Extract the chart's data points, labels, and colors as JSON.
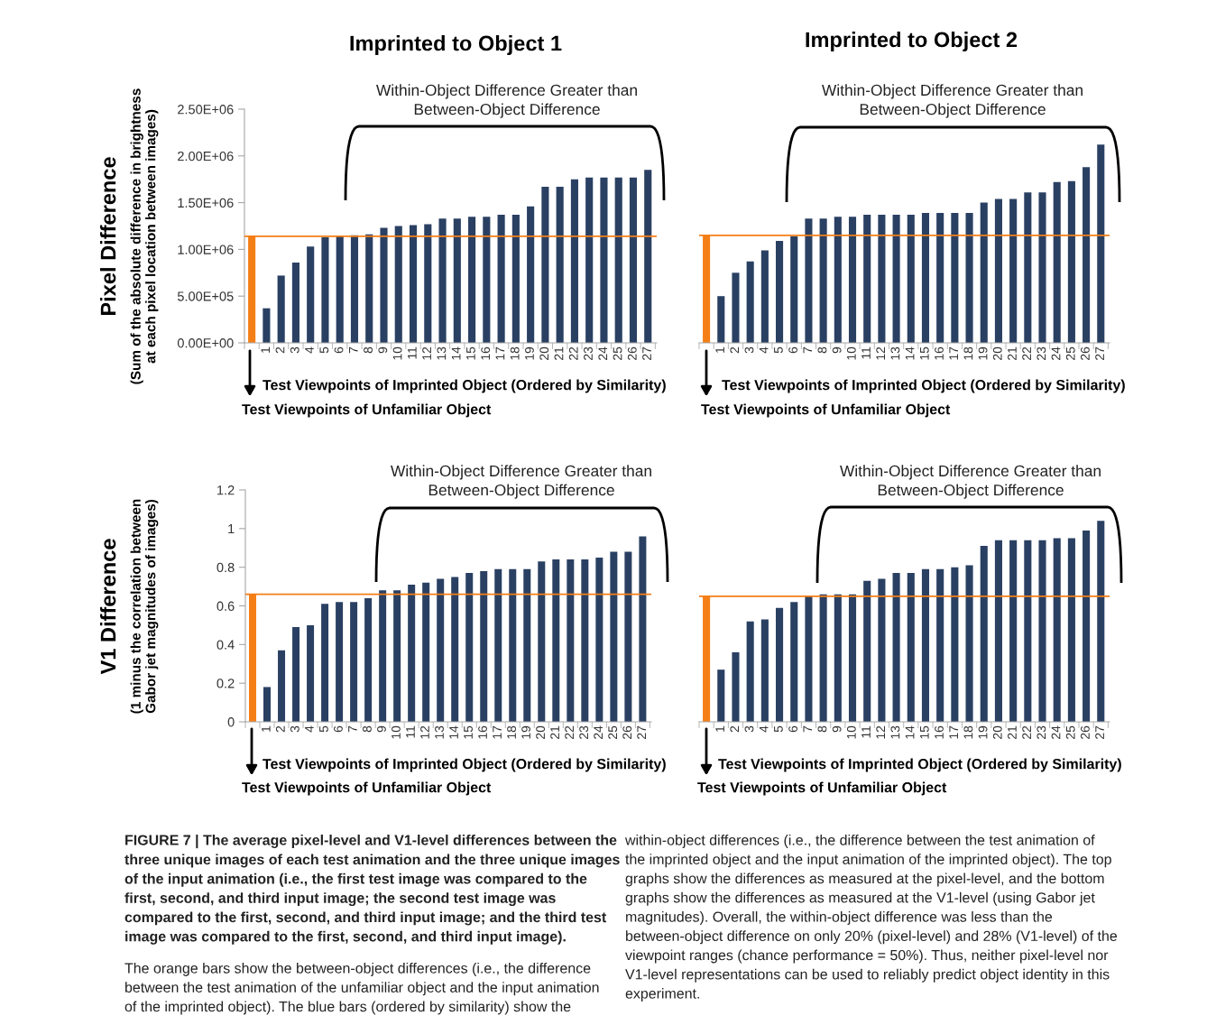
{
  "chart_data": [
    {
      "type": "bar",
      "title": "Imprinted to Object 1",
      "ylabel": "Pixel Difference\n(Sum of the absolute difference in brightness\nat each pixel location between images)",
      "xlabel": "Test Viewpoints of Imprinted Object (Ordered by Similarity)",
      "categories": [
        null,
        "1",
        "2",
        "3",
        "4",
        "5",
        "6",
        "7",
        "8",
        "9",
        "10",
        "11",
        "12",
        "13",
        "14",
        "15",
        "16",
        "17",
        "18",
        "19",
        "20",
        "21",
        "22",
        "23",
        "24",
        "25",
        "26",
        "27"
      ],
      "values": [
        1140000,
        370000,
        720000,
        860000,
        1030000,
        1130000,
        1140000,
        1150000,
        1160000,
        1230000,
        1250000,
        1260000,
        1270000,
        1330000,
        1330000,
        1350000,
        1350000,
        1370000,
        1370000,
        1460000,
        1670000,
        1670000,
        1750000,
        1770000,
        1770000,
        1770000,
        1770000,
        1850000
      ],
      "colors": [
        "#f57f17",
        "#2a4063",
        "#2a4063",
        "#2a4063",
        "#2a4063",
        "#2a4063",
        "#2a4063",
        "#2a4063",
        "#2a4063",
        "#2a4063",
        "#2a4063",
        "#2a4063",
        "#2a4063",
        "#2a4063",
        "#2a4063",
        "#2a4063",
        "#2a4063",
        "#2a4063",
        "#2a4063",
        "#2a4063",
        "#2a4063",
        "#2a4063",
        "#2a4063",
        "#2a4063",
        "#2a4063",
        "#2a4063",
        "#2a4063",
        "#2a4063"
      ],
      "ylim": [
        0,
        2500000
      ],
      "yticks": [
        {
          "value": 0,
          "label": "0.00E+00"
        },
        {
          "value": 500000,
          "label": "5.00E+05"
        },
        {
          "value": 1000000,
          "label": "1.00E+06"
        },
        {
          "value": 1500000,
          "label": "1.50E+06"
        },
        {
          "value": 2000000,
          "label": "2.00E+06"
        },
        {
          "value": 2500000,
          "label": "2.50E+06"
        }
      ],
      "ref_lines": [
        {
          "axis": "y",
          "value": 1140000,
          "color": "#f57f17"
        }
      ],
      "annotations": [
        "Within-Object Difference Greater than\nBetween-Object Difference",
        "Test Viewpoints of Unfamiliar Object",
        "FIGURE 7 | The average pixel-level and V1-level differences between the\nthree unique images of each test animation and the three unique images\nof the input animation (i.e., the first test image was compared to the\nfirst, second, and third input image; the second test image was\ncompared to the first, second, and third input image; and the third test\nimage was compared to the first, second, and third input image).",
        "The orange bars show the between-object differences (i.e., the difference\nbetween the test animation of the unfamiliar object and the input animation\nof the imprinted object). The blue bars (ordered by similarity) show the",
        "within-object differences (i.e., the difference between the test animation of\nthe imprinted object and the input animation of the imprinted object). The top\ngraphs show the differences as measured at the pixel-level, and the bottom\ngraphs show the differences as measured at the V1-level (using Gabor jet\nmagnitudes). Overall, the within-object difference was less than the\nbetween-object difference on only 20% (pixel-level) and 28% (V1-level) of the\nviewpoint ranges (chance performance = 50%). Thus, neither pixel-level nor\nV1-level representations can be used to reliably predict object identity in this\nexperiment."
      ]
    },
    {
      "type": "bar",
      "title": "Imprinted to Object 2",
      "xlabel": "Test Viewpoints of Imprinted Object (Ordered by Similarity)",
      "categories": [
        null,
        "1",
        "2",
        "3",
        "4",
        "5",
        "6",
        "7",
        "8",
        "9",
        "10",
        "11",
        "12",
        "13",
        "14",
        "15",
        "16",
        "17",
        "18",
        "19",
        "20",
        "21",
        "22",
        "23",
        "24",
        "25",
        "26",
        "27"
      ],
      "values": [
        1150000,
        500000,
        750000,
        870000,
        990000,
        1090000,
        1140000,
        1330000,
        1330000,
        1350000,
        1350000,
        1370000,
        1370000,
        1370000,
        1370000,
        1390000,
        1390000,
        1390000,
        1390000,
        1500000,
        1540000,
        1540000,
        1610000,
        1610000,
        1720000,
        1730000,
        1880000,
        2120000
      ],
      "colors": [
        "#f57f17",
        "#2a4063",
        "#2a4063",
        "#2a4063",
        "#2a4063",
        "#2a4063",
        "#2a4063",
        "#2a4063",
        "#2a4063",
        "#2a4063",
        "#2a4063",
        "#2a4063",
        "#2a4063",
        "#2a4063",
        "#2a4063",
        "#2a4063",
        "#2a4063",
        "#2a4063",
        "#2a4063",
        "#2a4063",
        "#2a4063",
        "#2a4063",
        "#2a4063",
        "#2a4063",
        "#2a4063",
        "#2a4063",
        "#2a4063",
        "#2a4063"
      ],
      "ylim": [
        0,
        2500000
      ],
      "tick_labels": "x",
      "ref_lines": [
        {
          "axis": "y",
          "value": 1150000,
          "color": "#f57f17"
        }
      ],
      "annotations": [
        "Within-Object Difference Greater than\nBetween-Object Difference",
        "Test Viewpoints of Unfamiliar Object"
      ]
    },
    {
      "type": "bar",
      "ylabel": "V1 Difference\n(1 minus the correlation between\nGabor jet magnitudes of images)",
      "xlabel": "Test Viewpoints of Imprinted Object (Ordered by Similarity)",
      "categories": [
        null,
        "1",
        "2",
        "3",
        "4",
        "5",
        "6",
        "7",
        "8",
        "9",
        "10",
        "11",
        "12",
        "13",
        "14",
        "15",
        "16",
        "17",
        "18",
        "19",
        "20",
        "21",
        "22",
        "23",
        "24",
        "25",
        "26",
        "27"
      ],
      "values": [
        0.66,
        0.18,
        0.37,
        0.49,
        0.5,
        0.61,
        0.62,
        0.62,
        0.64,
        0.68,
        0.68,
        0.71,
        0.72,
        0.74,
        0.75,
        0.77,
        0.78,
        0.79,
        0.79,
        0.79,
        0.83,
        0.84,
        0.84,
        0.84,
        0.85,
        0.88,
        0.88,
        0.96
      ],
      "colors": [
        "#f57f17",
        "#2a4063",
        "#2a4063",
        "#2a4063",
        "#2a4063",
        "#2a4063",
        "#2a4063",
        "#2a4063",
        "#2a4063",
        "#2a4063",
        "#2a4063",
        "#2a4063",
        "#2a4063",
        "#2a4063",
        "#2a4063",
        "#2a4063",
        "#2a4063",
        "#2a4063",
        "#2a4063",
        "#2a4063",
        "#2a4063",
        "#2a4063",
        "#2a4063",
        "#2a4063",
        "#2a4063",
        "#2a4063",
        "#2a4063",
        "#2a4063"
      ],
      "ylim": [
        0,
        1.2
      ],
      "yticks": [
        0,
        0.2,
        0.4,
        0.6,
        0.8,
        1,
        1.2
      ],
      "ref_lines": [
        {
          "axis": "y",
          "value": 0.66,
          "color": "#f57f17"
        }
      ],
      "annotations": [
        "Within-Object Difference Greater than\nBetween-Object Difference",
        "Test Viewpoints of Unfamiliar Object"
      ]
    },
    {
      "type": "bar",
      "xlabel": "Test Viewpoints of Imprinted Object (Ordered by Similarity)",
      "categories": [
        null,
        "1",
        "2",
        "3",
        "4",
        "5",
        "6",
        "7",
        "8",
        "9",
        "10",
        "11",
        "12",
        "13",
        "14",
        "15",
        "16",
        "17",
        "18",
        "19",
        "20",
        "21",
        "22",
        "23",
        "24",
        "25",
        "26",
        "27"
      ],
      "values": [
        0.65,
        0.27,
        0.36,
        0.52,
        0.53,
        0.59,
        0.62,
        0.65,
        0.66,
        0.66,
        0.66,
        0.73,
        0.74,
        0.77,
        0.77,
        0.79,
        0.79,
        0.8,
        0.81,
        0.91,
        0.94,
        0.94,
        0.94,
        0.94,
        0.95,
        0.95,
        0.99,
        1.04
      ],
      "colors": [
        "#f57f17",
        "#2a4063",
        "#2a4063",
        "#2a4063",
        "#2a4063",
        "#2a4063",
        "#2a4063",
        "#2a4063",
        "#2a4063",
        "#2a4063",
        "#2a4063",
        "#2a4063",
        "#2a4063",
        "#2a4063",
        "#2a4063",
        "#2a4063",
        "#2a4063",
        "#2a4063",
        "#2a4063",
        "#2a4063",
        "#2a4063",
        "#2a4063",
        "#2a4063",
        "#2a4063",
        "#2a4063",
        "#2a4063",
        "#2a4063",
        "#2a4063"
      ],
      "ylim": [
        0,
        1.2
      ],
      "tick_labels": "x",
      "ref_lines": [
        {
          "axis": "y",
          "value": 0.65,
          "color": "#f57f17"
        }
      ],
      "annotations": [
        "Within-Object Difference Greater than\nBetween-Object Difference",
        "Test Viewpoints of Unfamiliar Object"
      ]
    }
  ]
}
